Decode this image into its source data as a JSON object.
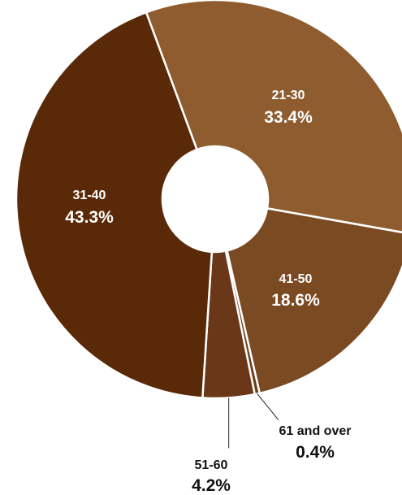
{
  "chart_data": {
    "type": "pie",
    "donut": true,
    "slices": [
      {
        "label": "21-30",
        "value": 33.4,
        "value_label": "33.4%",
        "color": "#8e5c2e",
        "label_position": "inside"
      },
      {
        "label": "41-50",
        "value": 18.6,
        "value_label": "18.6%",
        "color": "#7a4a23",
        "label_position": "inside"
      },
      {
        "label": "61 and over",
        "value": 0.4,
        "value_label": "0.4%",
        "color": "#6e3f1b",
        "label_position": "outside"
      },
      {
        "label": "51-60",
        "value": 4.2,
        "value_label": "4.2%",
        "color": "#6a3818",
        "label_position": "outside"
      },
      {
        "label": "31-40",
        "value": 43.3,
        "value_label": "43.3%",
        "color": "#5a2907",
        "label_position": "inside"
      }
    ],
    "separator_color": "#ffffff",
    "title": "",
    "legend": "none"
  }
}
